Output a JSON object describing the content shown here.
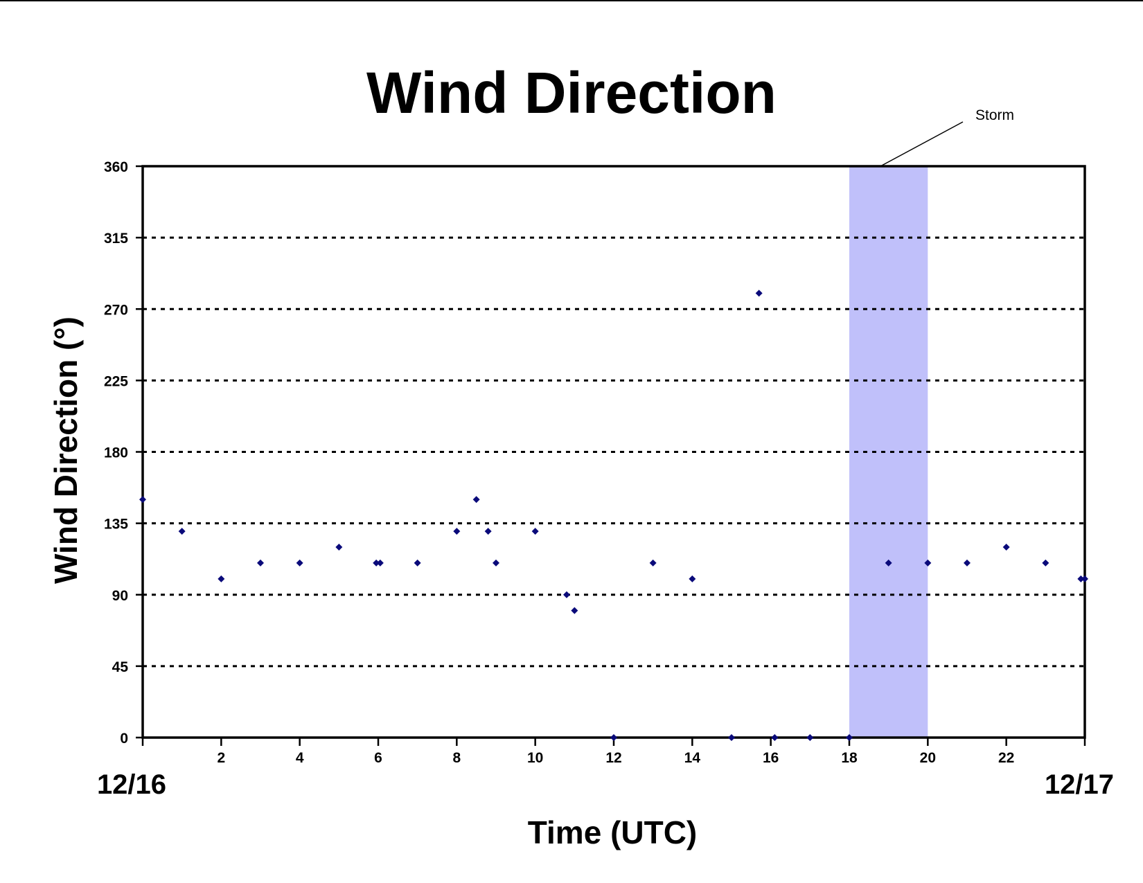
{
  "colors": {
    "point": "#0a0a7a",
    "storm_band": "#c0c0fa",
    "axis": "#000000",
    "grid": "#000000"
  },
  "chart_data": {
    "type": "scatter",
    "title": "Wind Direction",
    "xlabel": "Time (UTC)",
    "ylabel": "Wind Direction (°)",
    "xlim": [
      0,
      24
    ],
    "ylim": [
      0,
      360
    ],
    "x_ticks": [
      0,
      2,
      4,
      6,
      8,
      10,
      12,
      14,
      16,
      18,
      20,
      22,
      24
    ],
    "x_tick_labels": [
      "",
      "2",
      "4",
      "6",
      "8",
      "10",
      "12",
      "14",
      "16",
      "18",
      "20",
      "22",
      ""
    ],
    "y_ticks": [
      0,
      45,
      90,
      135,
      180,
      225,
      270,
      315,
      360
    ],
    "y_tick_labels": [
      "0",
      "45",
      "90",
      "135",
      "180",
      "225",
      "270",
      "315",
      "360"
    ],
    "date_labels": {
      "start": "12/16",
      "end": "12/17"
    },
    "grid": "horizontal dotted",
    "annotation": {
      "text": "Storm",
      "x_start": 18,
      "x_end": 20
    },
    "series": [
      {
        "x": [
          0,
          1,
          2,
          3,
          4,
          5,
          5.95,
          6.05,
          7,
          8,
          8.5,
          8.8,
          9.0,
          10,
          10.8,
          11,
          12,
          13,
          14,
          15,
          15.7,
          16.1,
          17,
          18,
          19,
          20,
          21,
          22,
          23,
          23.9,
          24
        ],
        "y": [
          150,
          130,
          100,
          110,
          110,
          120,
          110,
          110,
          110,
          130,
          150,
          130,
          110,
          130,
          90,
          80,
          0,
          110,
          100,
          0,
          280,
          0,
          0,
          0,
          110,
          110,
          110,
          120,
          110,
          100,
          100
        ]
      }
    ]
  }
}
